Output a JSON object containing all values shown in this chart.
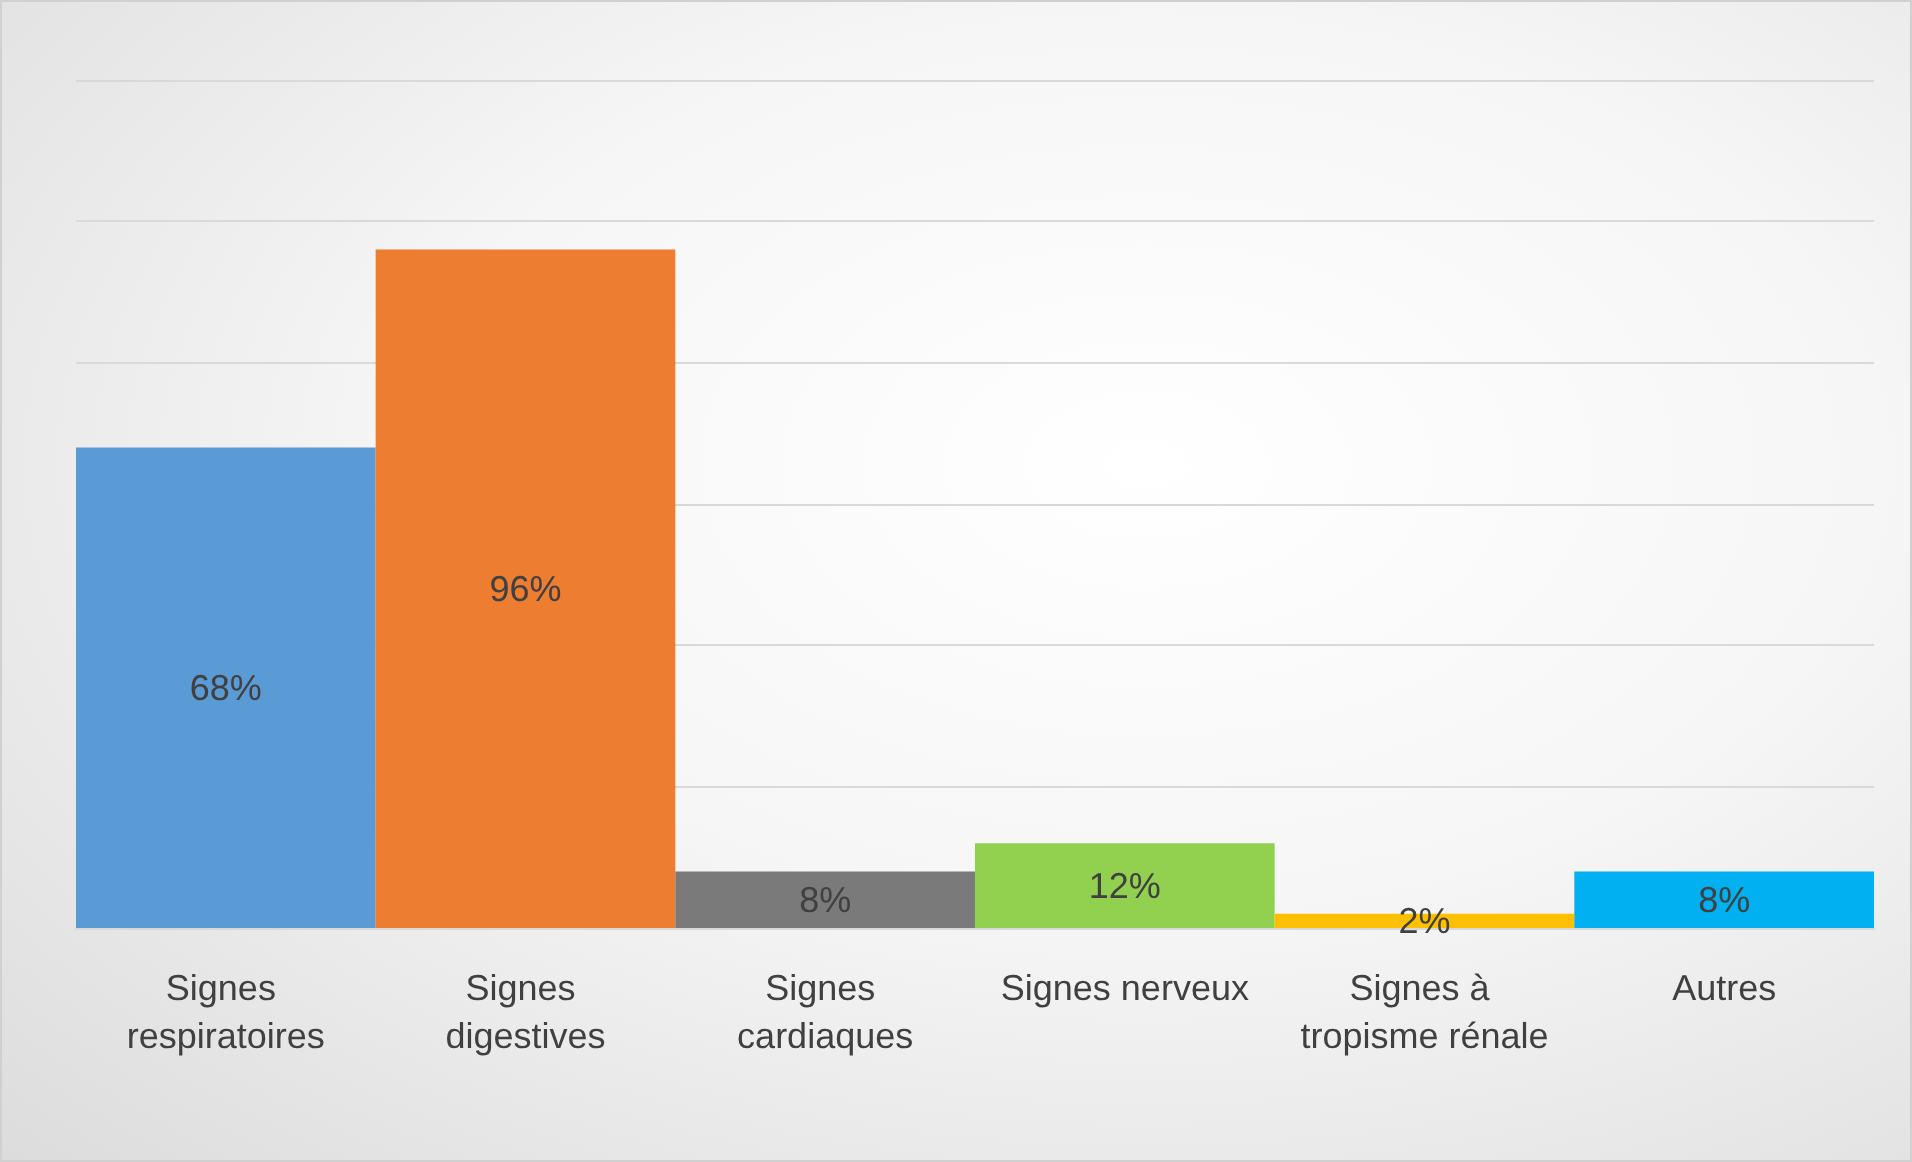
{
  "chart_data": {
    "type": "bar",
    "categories": [
      "Signes respiratoires",
      "Signes digestives",
      "Signes cardiaques",
      "Signes nerveux",
      "Signes à tropisme rénale",
      "Autres"
    ],
    "values": [
      68,
      96,
      8,
      12,
      2,
      8
    ],
    "colors": [
      "#5b9bd5",
      "#ed7d31",
      "#7a7a7a",
      "#92d050",
      "#ffc000",
      "#00b0f0"
    ],
    "value_labels": [
      "68%",
      "96%",
      "8%",
      "12%",
      "2%",
      "8%"
    ],
    "ylim": [
      0,
      120
    ],
    "yticks": [
      {
        "value": 0,
        "label": null
      },
      {
        "value": 20,
        "label": null
      },
      {
        "value": 40,
        "label": null
      },
      {
        "value": 60,
        "label": null
      },
      {
        "value": 80,
        "label": null
      },
      {
        "value": 100,
        "label": null
      },
      {
        "value": 120,
        "label": null
      }
    ],
    "grid": "y",
    "tick_labels": "x"
  }
}
